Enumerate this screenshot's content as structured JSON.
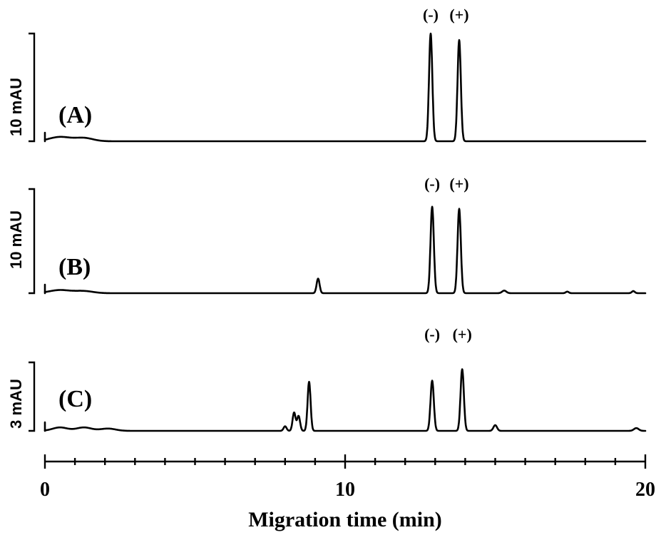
{
  "chart_data": {
    "type": "line",
    "xlabel": "Migration time (min)",
    "xlim": [
      0,
      20
    ],
    "xticks": [
      {
        "value": 0,
        "label": "0"
      },
      {
        "value": 10,
        "label": "10"
      },
      {
        "value": 20,
        "label": "20"
      }
    ],
    "xminor": [
      1,
      2,
      3,
      4,
      5,
      6,
      7,
      8,
      9,
      11,
      12,
      13,
      14,
      15,
      16,
      17,
      18,
      19
    ],
    "panels": [
      {
        "label": "(A)",
        "scale_label": "10 mAU",
        "scale_value": 10,
        "peak_labels": [
          {
            "text": "(-)",
            "x": 12.85
          },
          {
            "text": "(+)",
            "x": 13.8
          }
        ],
        "peaks": [
          {
            "t": 0.5,
            "h": 0.4,
            "w": 0.35
          },
          {
            "t": 1.3,
            "h": 0.3,
            "w": 0.3
          },
          {
            "t": 12.85,
            "h": 10.0,
            "w": 0.055
          },
          {
            "t": 13.8,
            "h": 9.4,
            "w": 0.055
          }
        ]
      },
      {
        "label": "(B)",
        "scale_label": "10 mAU",
        "scale_value": 10,
        "peak_labels": [
          {
            "text": "(-)",
            "x": 12.9
          },
          {
            "text": "(+)",
            "x": 13.8
          }
        ],
        "peaks": [
          {
            "t": 0.5,
            "h": 0.3,
            "w": 0.35
          },
          {
            "t": 1.3,
            "h": 0.2,
            "w": 0.3
          },
          {
            "t": 9.1,
            "h": 1.4,
            "w": 0.05
          },
          {
            "t": 12.9,
            "h": 8.3,
            "w": 0.055
          },
          {
            "t": 13.8,
            "h": 8.1,
            "w": 0.055
          },
          {
            "t": 15.3,
            "h": 0.25,
            "w": 0.07
          },
          {
            "t": 17.4,
            "h": 0.15,
            "w": 0.05
          },
          {
            "t": 19.6,
            "h": 0.2,
            "w": 0.05
          }
        ]
      },
      {
        "label": "(C)",
        "scale_label": "3 mAU",
        "scale_value": 3,
        "peak_labels": [
          {
            "text": "(-)",
            "x": 12.9
          },
          {
            "text": "(+)",
            "x": 13.9
          }
        ],
        "peaks": [
          {
            "t": 0.5,
            "h": 0.15,
            "w": 0.25
          },
          {
            "t": 1.3,
            "h": 0.15,
            "w": 0.25
          },
          {
            "t": 2.1,
            "h": 0.1,
            "w": 0.25
          },
          {
            "t": 8.0,
            "h": 0.2,
            "w": 0.05
          },
          {
            "t": 8.3,
            "h": 0.8,
            "w": 0.05
          },
          {
            "t": 8.45,
            "h": 0.65,
            "w": 0.05
          },
          {
            "t": 8.8,
            "h": 2.15,
            "w": 0.05
          },
          {
            "t": 12.9,
            "h": 2.2,
            "w": 0.055
          },
          {
            "t": 13.9,
            "h": 2.7,
            "w": 0.055
          },
          {
            "t": 15.0,
            "h": 0.25,
            "w": 0.06
          },
          {
            "t": 19.7,
            "h": 0.12,
            "w": 0.08
          }
        ]
      }
    ]
  }
}
